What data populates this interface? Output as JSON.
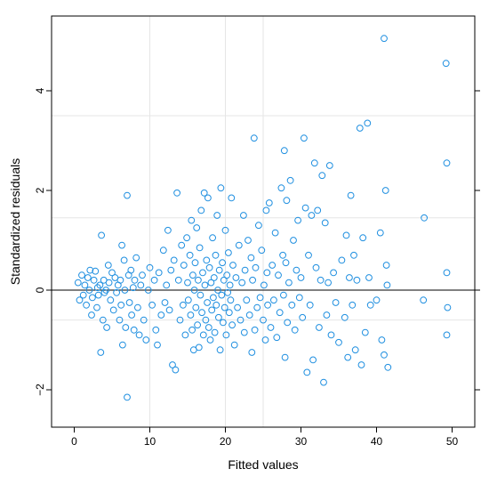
{
  "chart_data": {
    "type": "scatter",
    "title": "",
    "xlabel": "Fitted values",
    "ylabel": "Standardized residuals",
    "xlim": [
      -3,
      53
    ],
    "ylim": [
      -2.75,
      5.5
    ],
    "x_ticks": [
      0,
      10,
      20,
      30,
      40,
      50
    ],
    "x_tick_labels": [
      "0",
      "10",
      "20",
      "30",
      "40",
      "50"
    ],
    "y_ticks": [
      -2,
      0,
      2,
      4
    ],
    "y_tick_labels": [
      "−2",
      "0",
      "2",
      "4"
    ],
    "grid_x": [
      10,
      20,
      25
    ],
    "grid_y": [
      3.5,
      1.45,
      -0.6
    ],
    "reference_line_y": 0,
    "grid": true,
    "legend": "none",
    "colors": {
      "points": "#1f8fe0",
      "grid": "#e6e6e6",
      "axis": "#000000"
    },
    "points": [
      [
        0.5,
        0.15
      ],
      [
        0.7,
        -0.2
      ],
      [
        1.0,
        0.3
      ],
      [
        1.2,
        -0.1
      ],
      [
        1.4,
        0.1
      ],
      [
        1.6,
        -0.3
      ],
      [
        1.8,
        0.25
      ],
      [
        2.0,
        0.0
      ],
      [
        2.1,
        0.4
      ],
      [
        2.3,
        -0.5
      ],
      [
        2.4,
        -0.15
      ],
      [
        2.6,
        0.2
      ],
      [
        2.8,
        0.38
      ],
      [
        3.0,
        -0.35
      ],
      [
        3.1,
        0.05
      ],
      [
        3.2,
        -0.1
      ],
      [
        3.4,
        0.1
      ],
      [
        3.5,
        -1.25
      ],
      [
        3.6,
        1.1
      ],
      [
        3.8,
        -0.6
      ],
      [
        3.9,
        0.2
      ],
      [
        4.0,
        -0.05
      ],
      [
        4.2,
        0.0
      ],
      [
        4.3,
        -0.75
      ],
      [
        4.5,
        0.5
      ],
      [
        4.6,
        0.15
      ],
      [
        4.8,
        -0.2
      ],
      [
        5.0,
        0.35
      ],
      [
        5.2,
        -0.4
      ],
      [
        5.4,
        0.25
      ],
      [
        5.6,
        -0.05
      ],
      [
        5.8,
        0.1
      ],
      [
        6.0,
        -0.6
      ],
      [
        6.1,
        0.2
      ],
      [
        6.2,
        -0.3
      ],
      [
        6.3,
        0.9
      ],
      [
        6.4,
        -1.1
      ],
      [
        6.6,
        0.6
      ],
      [
        6.7,
        0.0
      ],
      [
        6.8,
        -0.75
      ],
      [
        7.0,
        1.9
      ],
      [
        7.0,
        -2.15
      ],
      [
        7.2,
        0.3
      ],
      [
        7.3,
        -0.25
      ],
      [
        7.5,
        0.4
      ],
      [
        7.6,
        -0.5
      ],
      [
        7.8,
        0.05
      ],
      [
        7.9,
        -0.8
      ],
      [
        8.0,
        0.2
      ],
      [
        8.2,
        0.65
      ],
      [
        8.4,
        -0.35
      ],
      [
        8.6,
        -0.9
      ],
      [
        8.8,
        0.1
      ],
      [
        9.0,
        0.3
      ],
      [
        9.2,
        -0.6
      ],
      [
        9.5,
        -1.0
      ],
      [
        9.8,
        0.0
      ],
      [
        10.0,
        0.45
      ],
      [
        10.3,
        -0.3
      ],
      [
        10.6,
        0.2
      ],
      [
        10.8,
        -0.8
      ],
      [
        11.0,
        -1.1
      ],
      [
        11.2,
        0.35
      ],
      [
        11.5,
        -0.5
      ],
      [
        11.8,
        0.8
      ],
      [
        12.0,
        -0.25
      ],
      [
        12.2,
        0.1
      ],
      [
        12.4,
        1.2
      ],
      [
        12.6,
        -0.4
      ],
      [
        12.8,
        0.4
      ],
      [
        13.0,
        -1.5
      ],
      [
        13.2,
        0.6
      ],
      [
        13.4,
        -1.6
      ],
      [
        13.6,
        1.95
      ],
      [
        13.8,
        0.2
      ],
      [
        14.0,
        -0.6
      ],
      [
        14.2,
        0.9
      ],
      [
        14.4,
        -0.3
      ],
      [
        14.5,
        0.5
      ],
      [
        14.7,
        -0.9
      ],
      [
        14.9,
        1.05
      ],
      [
        15.0,
        0.15
      ],
      [
        15.1,
        -0.2
      ],
      [
        15.3,
        0.7
      ],
      [
        15.4,
        -0.5
      ],
      [
        15.5,
        1.4
      ],
      [
        15.6,
        -0.8
      ],
      [
        15.7,
        0.3
      ],
      [
        15.8,
        -1.2
      ],
      [
        15.9,
        0.0
      ],
      [
        16.0,
        0.55
      ],
      [
        16.1,
        -0.35
      ],
      [
        16.2,
        1.25
      ],
      [
        16.3,
        -0.7
      ],
      [
        16.4,
        0.2
      ],
      [
        16.5,
        -1.15
      ],
      [
        16.6,
        0.85
      ],
      [
        16.7,
        -0.1
      ],
      [
        16.8,
        1.6
      ],
      [
        16.9,
        -0.45
      ],
      [
        17.0,
        0.35
      ],
      [
        17.1,
        -0.9
      ],
      [
        17.2,
        1.95
      ],
      [
        17.3,
        0.1
      ],
      [
        17.4,
        -0.6
      ],
      [
        17.5,
        0.6
      ],
      [
        17.6,
        -0.25
      ],
      [
        17.7,
        1.85
      ],
      [
        17.8,
        -0.75
      ],
      [
        17.9,
        0.45
      ],
      [
        18.0,
        -1.0
      ],
      [
        18.1,
        0.15
      ],
      [
        18.2,
        -0.4
      ],
      [
        18.3,
        1.05
      ],
      [
        18.4,
        -0.15
      ],
      [
        18.5,
        0.25
      ],
      [
        18.6,
        -0.85
      ],
      [
        18.7,
        0.7
      ],
      [
        18.8,
        -0.3
      ],
      [
        18.9,
        1.5
      ],
      [
        19.0,
        0.0
      ],
      [
        19.1,
        -0.55
      ],
      [
        19.2,
        0.4
      ],
      [
        19.3,
        -1.2
      ],
      [
        19.4,
        2.05
      ],
      [
        19.5,
        -0.1
      ],
      [
        19.6,
        0.55
      ],
      [
        19.7,
        -0.65
      ],
      [
        19.8,
        0.2
      ],
      [
        19.9,
        -0.35
      ],
      [
        20.0,
        1.2
      ],
      [
        20.1,
        -0.9
      ],
      [
        20.2,
        0.3
      ],
      [
        20.3,
        -0.05
      ],
      [
        20.4,
        0.75
      ],
      [
        20.5,
        -0.45
      ],
      [
        20.6,
        0.1
      ],
      [
        20.7,
        -0.2
      ],
      [
        20.8,
        1.85
      ],
      [
        20.9,
        -0.7
      ],
      [
        21.0,
        0.5
      ],
      [
        21.2,
        -1.1
      ],
      [
        21.4,
        0.25
      ],
      [
        21.6,
        -0.35
      ],
      [
        21.8,
        0.9
      ],
      [
        22.0,
        -0.6
      ],
      [
        22.2,
        0.15
      ],
      [
        22.4,
        1.5
      ],
      [
        22.5,
        -0.85
      ],
      [
        22.6,
        0.4
      ],
      [
        22.8,
        -0.2
      ],
      [
        23.0,
        1.0
      ],
      [
        23.2,
        -0.5
      ],
      [
        23.4,
        0.65
      ],
      [
        23.5,
        -1.25
      ],
      [
        23.6,
        0.2
      ],
      [
        23.8,
        3.05
      ],
      [
        23.9,
        -0.8
      ],
      [
        24.0,
        0.45
      ],
      [
        24.2,
        -0.35
      ],
      [
        24.4,
        1.3
      ],
      [
        24.6,
        -0.15
      ],
      [
        24.8,
        0.8
      ],
      [
        25.0,
        -0.6
      ],
      [
        25.1,
        0.1
      ],
      [
        25.3,
        -1.0
      ],
      [
        25.4,
        1.6
      ],
      [
        25.5,
        0.35
      ],
      [
        25.6,
        -0.3
      ],
      [
        25.8,
        1.75
      ],
      [
        26.0,
        -0.75
      ],
      [
        26.2,
        0.5
      ],
      [
        26.4,
        -0.2
      ],
      [
        26.6,
        1.15
      ],
      [
        26.8,
        -0.95
      ],
      [
        27.0,
        0.3
      ],
      [
        27.2,
        -0.45
      ],
      [
        27.4,
        2.05
      ],
      [
        27.6,
        0.7
      ],
      [
        27.7,
        -0.1
      ],
      [
        27.8,
        2.8
      ],
      [
        27.9,
        -1.35
      ],
      [
        28.0,
        0.55
      ],
      [
        28.1,
        1.8
      ],
      [
        28.2,
        -0.65
      ],
      [
        28.4,
        0.15
      ],
      [
        28.6,
        2.2
      ],
      [
        28.8,
        -0.3
      ],
      [
        29.0,
        1.0
      ],
      [
        29.2,
        -0.8
      ],
      [
        29.4,
        0.4
      ],
      [
        29.6,
        1.4
      ],
      [
        29.8,
        -0.15
      ],
      [
        30.0,
        0.25
      ],
      [
        30.2,
        -0.55
      ],
      [
        30.4,
        3.05
      ],
      [
        30.6,
        1.65
      ],
      [
        30.8,
        -1.65
      ],
      [
        31.0,
        0.7
      ],
      [
        31.2,
        -0.3
      ],
      [
        31.4,
        1.5
      ],
      [
        31.6,
        -1.4
      ],
      [
        31.8,
        2.55
      ],
      [
        32.0,
        0.45
      ],
      [
        32.2,
        1.6
      ],
      [
        32.4,
        -0.75
      ],
      [
        32.6,
        0.2
      ],
      [
        32.8,
        2.3
      ],
      [
        33.0,
        -1.85
      ],
      [
        33.2,
        1.35
      ],
      [
        33.4,
        -0.5
      ],
      [
        33.6,
        0.15
      ],
      [
        33.8,
        2.5
      ],
      [
        34.0,
        -0.9
      ],
      [
        34.3,
        0.35
      ],
      [
        34.6,
        -0.25
      ],
      [
        35.0,
        -1.05
      ],
      [
        35.4,
        0.6
      ],
      [
        35.8,
        -0.55
      ],
      [
        36.0,
        1.1
      ],
      [
        36.2,
        -1.35
      ],
      [
        36.4,
        0.25
      ],
      [
        36.6,
        1.9
      ],
      [
        36.8,
        -0.3
      ],
      [
        37.0,
        0.7
      ],
      [
        37.2,
        -1.2
      ],
      [
        37.4,
        0.2
      ],
      [
        37.8,
        3.25
      ],
      [
        38.0,
        -1.5
      ],
      [
        38.2,
        1.05
      ],
      [
        38.5,
        -0.85
      ],
      [
        38.8,
        3.35
      ],
      [
        39.0,
        0.25
      ],
      [
        39.2,
        -0.3
      ],
      [
        40.0,
        -0.2
      ],
      [
        40.5,
        1.15
      ],
      [
        40.7,
        -1.0
      ],
      [
        41.0,
        5.05
      ],
      [
        41.2,
        2.0
      ],
      [
        41.3,
        0.5
      ],
      [
        41.4,
        0.1
      ],
      [
        41.5,
        -1.55
      ],
      [
        41.0,
        -1.3
      ],
      [
        46.3,
        1.45
      ],
      [
        46.2,
        -0.2
      ],
      [
        49.2,
        4.55
      ],
      [
        49.3,
        2.55
      ],
      [
        49.3,
        0.35
      ],
      [
        49.4,
        -0.35
      ],
      [
        49.3,
        -0.9
      ]
    ]
  }
}
